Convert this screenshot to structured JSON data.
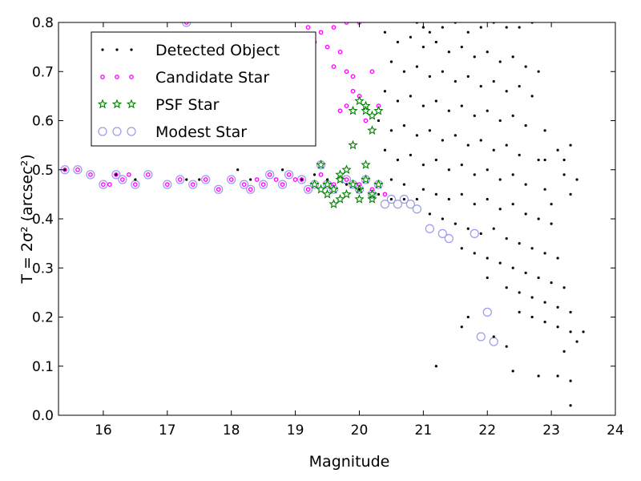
{
  "chart_data": {
    "type": "scatter",
    "xlabel": "Magnitude",
    "ylabel": "T = 2σ² (arcsec²)",
    "xlim": [
      15.3,
      24.0
    ],
    "ylim": [
      0.0,
      0.8
    ],
    "x_ticks": [
      16,
      17,
      18,
      19,
      20,
      21,
      22,
      23,
      24
    ],
    "y_ticks": [
      0.0,
      0.1,
      0.2,
      0.3,
      0.4,
      0.5,
      0.6,
      0.7,
      0.8
    ],
    "y_tick_labels": [
      "0.0",
      "0.1",
      "0.2",
      "0.3",
      "0.4",
      "0.5",
      "0.6",
      "0.7",
      "0.8"
    ],
    "grid": false,
    "legend_position": "top-left",
    "legend": [
      {
        "label": "Detected Object",
        "marker": "dot",
        "color": "#000000"
      },
      {
        "label": "Candidate Star",
        "marker": "small-circle",
        "color": "#ff00ff"
      },
      {
        "label": "PSF Star",
        "marker": "star",
        "color": "#008000"
      },
      {
        "label": "Modest Star",
        "marker": "open-circle",
        "color": "#9999ee"
      }
    ],
    "series": [
      {
        "name": "Detected Object",
        "color": "#000000",
        "marker": "dot",
        "points": [
          [
            15.4,
            0.5
          ],
          [
            16.2,
            0.49
          ],
          [
            16.5,
            0.48
          ],
          [
            17.3,
            0.48
          ],
          [
            17.5,
            0.48
          ],
          [
            18.1,
            0.5
          ],
          [
            18.3,
            0.48
          ],
          [
            18.8,
            0.5
          ],
          [
            19.1,
            0.48
          ],
          [
            19.3,
            0.49
          ],
          [
            19.5,
            0.48
          ],
          [
            19.8,
            0.47
          ],
          [
            20.0,
            0.46
          ],
          [
            20.3,
            0.45
          ],
          [
            20.5,
            0.44
          ],
          [
            20.7,
            0.44
          ],
          [
            20.9,
            0.44
          ],
          [
            20.9,
            0.8
          ],
          [
            21.0,
            0.79
          ],
          [
            21.1,
            0.78
          ],
          [
            21.3,
            0.79
          ],
          [
            21.5,
            0.8
          ],
          [
            21.7,
            0.78
          ],
          [
            21.9,
            0.79
          ],
          [
            22.1,
            0.8
          ],
          [
            22.3,
            0.79
          ],
          [
            22.5,
            0.79
          ],
          [
            22.7,
            0.8
          ],
          [
            20.4,
            0.78
          ],
          [
            20.6,
            0.76
          ],
          [
            20.8,
            0.77
          ],
          [
            21.0,
            0.75
          ],
          [
            21.2,
            0.76
          ],
          [
            21.4,
            0.74
          ],
          [
            21.6,
            0.75
          ],
          [
            21.8,
            0.73
          ],
          [
            22.0,
            0.74
          ],
          [
            22.2,
            0.72
          ],
          [
            22.4,
            0.73
          ],
          [
            22.6,
            0.71
          ],
          [
            22.8,
            0.7
          ],
          [
            20.5,
            0.72
          ],
          [
            20.7,
            0.7
          ],
          [
            20.9,
            0.71
          ],
          [
            21.1,
            0.69
          ],
          [
            21.3,
            0.7
          ],
          [
            21.5,
            0.68
          ],
          [
            21.7,
            0.69
          ],
          [
            21.9,
            0.67
          ],
          [
            22.1,
            0.68
          ],
          [
            22.3,
            0.66
          ],
          [
            22.5,
            0.67
          ],
          [
            22.7,
            0.65
          ],
          [
            20.4,
            0.66
          ],
          [
            20.6,
            0.64
          ],
          [
            20.8,
            0.65
          ],
          [
            21.0,
            0.63
          ],
          [
            21.2,
            0.64
          ],
          [
            21.4,
            0.62
          ],
          [
            21.6,
            0.63
          ],
          [
            21.8,
            0.61
          ],
          [
            22.0,
            0.62
          ],
          [
            22.2,
            0.6
          ],
          [
            22.4,
            0.61
          ],
          [
            22.6,
            0.59
          ],
          [
            22.9,
            0.58
          ],
          [
            20.3,
            0.6
          ],
          [
            20.5,
            0.58
          ],
          [
            20.7,
            0.59
          ],
          [
            20.9,
            0.57
          ],
          [
            21.1,
            0.58
          ],
          [
            21.3,
            0.56
          ],
          [
            21.5,
            0.57
          ],
          [
            21.7,
            0.55
          ],
          [
            21.9,
            0.56
          ],
          [
            22.1,
            0.54
          ],
          [
            22.3,
            0.55
          ],
          [
            22.5,
            0.53
          ],
          [
            22.8,
            0.52
          ],
          [
            20.4,
            0.54
          ],
          [
            20.6,
            0.52
          ],
          [
            20.8,
            0.53
          ],
          [
            21.0,
            0.51
          ],
          [
            21.2,
            0.52
          ],
          [
            21.4,
            0.5
          ],
          [
            21.6,
            0.51
          ],
          [
            21.8,
            0.49
          ],
          [
            22.0,
            0.5
          ],
          [
            22.2,
            0.48
          ],
          [
            22.4,
            0.49
          ],
          [
            22.6,
            0.47
          ],
          [
            22.9,
            0.46
          ],
          [
            20.5,
            0.48
          ],
          [
            20.7,
            0.47
          ],
          [
            21.0,
            0.46
          ],
          [
            21.2,
            0.45
          ],
          [
            21.4,
            0.44
          ],
          [
            21.6,
            0.45
          ],
          [
            21.8,
            0.43
          ],
          [
            22.0,
            0.44
          ],
          [
            22.2,
            0.42
          ],
          [
            22.4,
            0.43
          ],
          [
            22.6,
            0.41
          ],
          [
            22.8,
            0.4
          ],
          [
            23.0,
            0.39
          ],
          [
            21.1,
            0.41
          ],
          [
            21.3,
            0.4
          ],
          [
            21.5,
            0.39
          ],
          [
            21.7,
            0.38
          ],
          [
            21.9,
            0.37
          ],
          [
            22.1,
            0.38
          ],
          [
            22.3,
            0.36
          ],
          [
            22.5,
            0.35
          ],
          [
            22.7,
            0.34
          ],
          [
            22.9,
            0.33
          ],
          [
            23.1,
            0.32
          ],
          [
            21.6,
            0.34
          ],
          [
            21.8,
            0.33
          ],
          [
            22.0,
            0.32
          ],
          [
            22.2,
            0.31
          ],
          [
            22.4,
            0.3
          ],
          [
            22.6,
            0.29
          ],
          [
            22.8,
            0.28
          ],
          [
            23.0,
            0.27
          ],
          [
            23.2,
            0.26
          ],
          [
            22.0,
            0.28
          ],
          [
            22.3,
            0.26
          ],
          [
            22.5,
            0.25
          ],
          [
            22.7,
            0.24
          ],
          [
            22.9,
            0.23
          ],
          [
            23.1,
            0.22
          ],
          [
            23.3,
            0.21
          ],
          [
            22.5,
            0.21
          ],
          [
            22.7,
            0.2
          ],
          [
            22.9,
            0.19
          ],
          [
            23.1,
            0.18
          ],
          [
            23.3,
            0.17
          ],
          [
            23.5,
            0.17
          ],
          [
            23.4,
            0.15
          ],
          [
            23.2,
            0.13
          ],
          [
            21.6,
            0.18
          ],
          [
            22.3,
            0.14
          ],
          [
            22.4,
            0.09
          ],
          [
            22.8,
            0.08
          ],
          [
            23.1,
            0.08
          ],
          [
            23.3,
            0.07
          ],
          [
            23.3,
            0.02
          ],
          [
            21.2,
            0.1
          ],
          [
            21.7,
            0.2
          ],
          [
            22.1,
            0.16
          ],
          [
            23.0,
            0.43
          ],
          [
            23.3,
            0.45
          ],
          [
            23.4,
            0.48
          ],
          [
            23.2,
            0.49
          ],
          [
            22.9,
            0.52
          ],
          [
            23.1,
            0.54
          ],
          [
            23.3,
            0.55
          ],
          [
            23.2,
            0.52
          ]
        ]
      },
      {
        "name": "Candidate Star",
        "color": "#ff00ff",
        "marker": "small-circle",
        "points": [
          [
            15.4,
            0.5
          ],
          [
            15.6,
            0.5
          ],
          [
            15.8,
            0.49
          ],
          [
            16.0,
            0.47
          ],
          [
            16.1,
            0.47
          ],
          [
            16.2,
            0.49
          ],
          [
            16.3,
            0.48
          ],
          [
            16.4,
            0.49
          ],
          [
            16.5,
            0.47
          ],
          [
            16.7,
            0.49
          ],
          [
            17.0,
            0.47
          ],
          [
            17.2,
            0.48
          ],
          [
            17.4,
            0.47
          ],
          [
            17.6,
            0.48
          ],
          [
            17.8,
            0.46
          ],
          [
            18.0,
            0.48
          ],
          [
            18.2,
            0.47
          ],
          [
            18.3,
            0.46
          ],
          [
            18.4,
            0.48
          ],
          [
            18.5,
            0.47
          ],
          [
            18.6,
            0.49
          ],
          [
            18.7,
            0.48
          ],
          [
            18.8,
            0.47
          ],
          [
            18.9,
            0.49
          ],
          [
            19.0,
            0.48
          ],
          [
            19.1,
            0.48
          ],
          [
            19.2,
            0.46
          ],
          [
            19.4,
            0.49
          ],
          [
            19.6,
            0.47
          ],
          [
            19.8,
            0.48
          ],
          [
            20.0,
            0.47
          ],
          [
            20.2,
            0.46
          ],
          [
            20.4,
            0.45
          ],
          [
            17.3,
            0.8
          ],
          [
            19.2,
            0.79
          ],
          [
            19.4,
            0.78
          ],
          [
            19.6,
            0.79
          ],
          [
            19.8,
            0.8
          ],
          [
            20.0,
            0.8
          ],
          [
            19.3,
            0.76
          ],
          [
            19.5,
            0.75
          ],
          [
            19.7,
            0.74
          ],
          [
            19.6,
            0.71
          ],
          [
            19.8,
            0.7
          ],
          [
            19.9,
            0.66
          ],
          [
            20.0,
            0.65
          ],
          [
            19.8,
            0.63
          ],
          [
            19.7,
            0.62
          ],
          [
            20.1,
            0.6
          ],
          [
            20.3,
            0.63
          ],
          [
            20.2,
            0.7
          ],
          [
            19.9,
            0.69
          ]
        ]
      },
      {
        "name": "PSF Star",
        "color": "#008000",
        "marker": "star",
        "points": [
          [
            19.3,
            0.47
          ],
          [
            19.4,
            0.51
          ],
          [
            19.5,
            0.47
          ],
          [
            19.6,
            0.46
          ],
          [
            19.7,
            0.48
          ],
          [
            19.8,
            0.45
          ],
          [
            19.9,
            0.47
          ],
          [
            20.0,
            0.46
          ],
          [
            20.1,
            0.48
          ],
          [
            20.2,
            0.45
          ],
          [
            20.3,
            0.47
          ],
          [
            19.6,
            0.43
          ],
          [
            19.7,
            0.44
          ],
          [
            20.0,
            0.44
          ],
          [
            20.2,
            0.44
          ],
          [
            19.5,
            0.45
          ],
          [
            19.9,
            0.55
          ],
          [
            20.1,
            0.62
          ],
          [
            20.2,
            0.61
          ],
          [
            20.3,
            0.62
          ],
          [
            19.9,
            0.62
          ],
          [
            20.0,
            0.64
          ],
          [
            20.1,
            0.63
          ],
          [
            20.2,
            0.58
          ],
          [
            19.8,
            0.5
          ],
          [
            19.7,
            0.49
          ],
          [
            20.1,
            0.51
          ],
          [
            19.4,
            0.46
          ]
        ]
      },
      {
        "name": "Modest Star",
        "color": "#9999ee",
        "marker": "open-circle",
        "points": [
          [
            15.4,
            0.5
          ],
          [
            15.6,
            0.5
          ],
          [
            15.8,
            0.49
          ],
          [
            16.0,
            0.47
          ],
          [
            16.2,
            0.49
          ],
          [
            16.3,
            0.48
          ],
          [
            16.5,
            0.47
          ],
          [
            16.7,
            0.49
          ],
          [
            17.0,
            0.47
          ],
          [
            17.2,
            0.48
          ],
          [
            17.4,
            0.47
          ],
          [
            17.6,
            0.48
          ],
          [
            17.8,
            0.46
          ],
          [
            18.0,
            0.48
          ],
          [
            18.2,
            0.47
          ],
          [
            18.3,
            0.46
          ],
          [
            18.5,
            0.47
          ],
          [
            18.6,
            0.49
          ],
          [
            18.8,
            0.47
          ],
          [
            18.9,
            0.49
          ],
          [
            19.1,
            0.48
          ],
          [
            19.2,
            0.46
          ],
          [
            19.3,
            0.47
          ],
          [
            19.4,
            0.51
          ],
          [
            19.5,
            0.47
          ],
          [
            19.6,
            0.46
          ],
          [
            19.8,
            0.48
          ],
          [
            19.9,
            0.47
          ],
          [
            20.0,
            0.46
          ],
          [
            20.1,
            0.48
          ],
          [
            20.2,
            0.45
          ],
          [
            20.3,
            0.47
          ],
          [
            20.4,
            0.43
          ],
          [
            20.5,
            0.44
          ],
          [
            20.6,
            0.43
          ],
          [
            20.7,
            0.44
          ],
          [
            20.8,
            0.43
          ],
          [
            20.9,
            0.42
          ],
          [
            21.1,
            0.38
          ],
          [
            21.3,
            0.37
          ],
          [
            21.4,
            0.36
          ],
          [
            21.8,
            0.37
          ],
          [
            21.9,
            0.16
          ],
          [
            22.0,
            0.21
          ],
          [
            22.1,
            0.15
          ],
          [
            17.3,
            0.8
          ]
        ]
      }
    ]
  }
}
